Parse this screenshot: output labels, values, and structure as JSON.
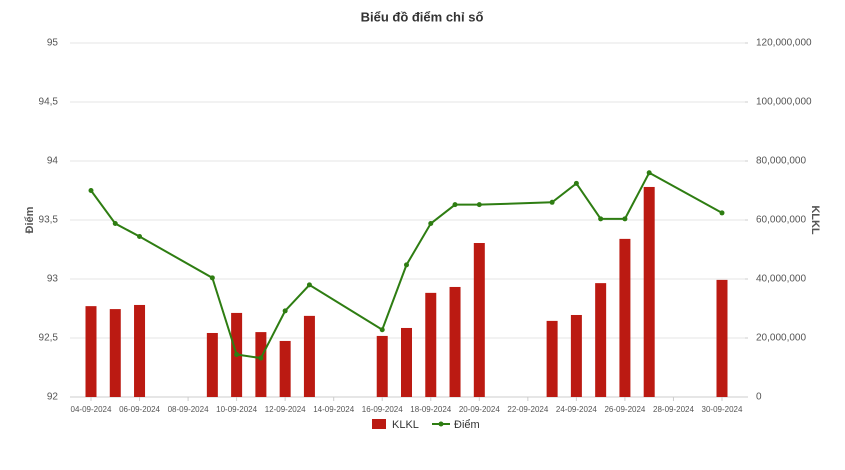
{
  "chart_data": {
    "type": "combo",
    "title": "Biểu đồ điểm chỉ số",
    "x": [
      "04-09-2024",
      "05-09-2024",
      "06-09-2024",
      "09-09-2024",
      "10-09-2024",
      "11-09-2024",
      "12-09-2024",
      "13-09-2024",
      "16-09-2024",
      "17-09-2024",
      "18-09-2024",
      "19-09-2024",
      "20-09-2024",
      "23-09-2024",
      "24-09-2024",
      "25-09-2024",
      "26-09-2024",
      "27-09-2024",
      "30-09-2024"
    ],
    "xticks": [
      "04-09-2024",
      "06-09-2024",
      "08-09-2024",
      "10-09-2024",
      "12-09-2024",
      "14-09-2024",
      "16-09-2024",
      "18-09-2024",
      "20-09-2024",
      "22-09-2024",
      "24-09-2024",
      "26-09-2024",
      "28-09-2024",
      "30-09-2024"
    ],
    "series": [
      {
        "name": "KLKL",
        "type": "bar",
        "axis": "y2",
        "color": "#bb1a12",
        "values": [
          30800000,
          29800000,
          31200000,
          21700000,
          28500000,
          22000000,
          19000000,
          27500000,
          20700000,
          23400000,
          35300000,
          37300000,
          52200000,
          25800000,
          27800000,
          38600000,
          53600000,
          71200000,
          39700000
        ]
      },
      {
        "name": "Điểm",
        "type": "line",
        "color": "#2e7d12",
        "values": [
          93.75,
          93.47,
          93.36,
          93.01,
          92.36,
          92.33,
          92.73,
          92.95,
          92.57,
          93.12,
          93.47,
          93.63,
          93.63,
          93.65,
          93.81,
          93.51,
          93.51,
          93.9,
          93.56
        ]
      }
    ],
    "ylabel": "Điểm",
    "y2label": "KLKL",
    "ylim": [
      92,
      95
    ],
    "yticks": [
      92,
      {
        "value": 92.5,
        "label": "92,5"
      },
      93,
      {
        "value": 93.5,
        "label": "93,5"
      },
      94,
      {
        "value": 94.5,
        "label": "94,5"
      },
      95
    ],
    "y2lim": [
      0,
      120000000
    ],
    "y2ticks": [
      0,
      {
        "value": 20000000,
        "label": "20,000,000"
      },
      {
        "value": 40000000,
        "label": "40,000,000"
      },
      {
        "value": 60000000,
        "label": "60,000,000"
      },
      {
        "value": 80000000,
        "label": "80,000,000"
      },
      {
        "value": 100000000,
        "label": "100,000,000"
      },
      {
        "value": 120000000,
        "label": "120,000,000"
      }
    ],
    "grid": true,
    "legend": "bottom"
  }
}
